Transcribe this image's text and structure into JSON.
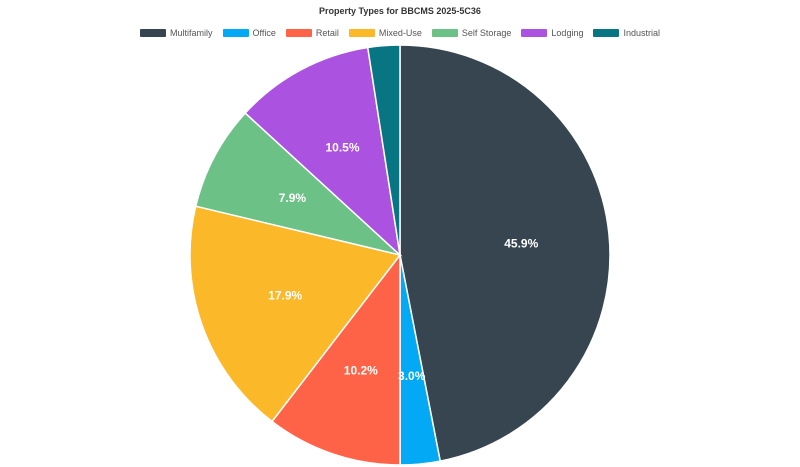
{
  "chart_data": {
    "type": "pie",
    "title": "Property Types for BBCMS 2025-5C36",
    "legend_position": "top",
    "slices": [
      {
        "name": "Multifamily",
        "value": 45.9,
        "label": "45.9%",
        "color": "#36454f"
      },
      {
        "name": "Office",
        "value": 3.0,
        "label": "3.0%",
        "color": "#03a9f4"
      },
      {
        "name": "Retail",
        "value": 10.2,
        "label": "10.2%",
        "color": "#ff6347"
      },
      {
        "name": "Mixed-Use",
        "value": 17.9,
        "label": "17.9%",
        "color": "#fbb829"
      },
      {
        "name": "Self Storage",
        "value": 7.9,
        "label": "7.9%",
        "color": "#6cc186"
      },
      {
        "name": "Lodging",
        "value": 10.5,
        "label": "10.5%",
        "color": "#ab52e0"
      },
      {
        "name": "Industrial",
        "value": 2.4,
        "label": "",
        "color": "#087583"
      }
    ]
  }
}
